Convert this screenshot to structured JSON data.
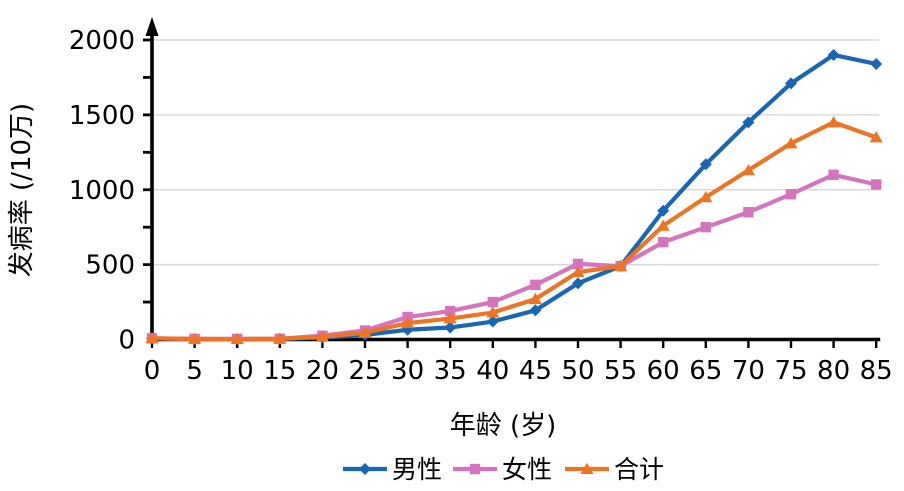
{
  "chart_data": {
    "type": "line",
    "title": "",
    "xlabel": "年龄 (岁)",
    "ylabel": "发病率 (/10万)",
    "x": [
      0,
      5,
      10,
      15,
      20,
      25,
      30,
      35,
      40,
      45,
      50,
      55,
      60,
      65,
      70,
      75,
      80,
      85
    ],
    "ylim": [
      0,
      2000
    ],
    "yticks": [
      0,
      500,
      1000,
      1500,
      2000
    ],
    "minor_tick_step": 250,
    "grid": "horizontal-major",
    "gridline_color": "#d9d9d9",
    "axis_color": "#000000",
    "legend_position": "bottom",
    "series": [
      {
        "id": "male",
        "name": "男性",
        "marker": "diamond",
        "color": "#1767B4",
        "values": [
          8,
          3,
          3,
          4,
          12,
          30,
          65,
          80,
          120,
          195,
          375,
          490,
          860,
          1170,
          1450,
          1710,
          1900,
          1840
        ]
      },
      {
        "id": "female",
        "name": "女性",
        "marker": "square",
        "color": "#D673BE",
        "values": [
          8,
          4,
          4,
          5,
          25,
          60,
          150,
          190,
          250,
          365,
          505,
          490,
          650,
          750,
          850,
          970,
          1100,
          1035
        ]
      },
      {
        "id": "total",
        "name": "合计",
        "marker": "triangle",
        "color": "#EE7423",
        "values": [
          8,
          4,
          3,
          5,
          18,
          45,
          110,
          140,
          180,
          270,
          450,
          490,
          760,
          950,
          1130,
          1310,
          1450,
          1350
        ]
      }
    ]
  }
}
